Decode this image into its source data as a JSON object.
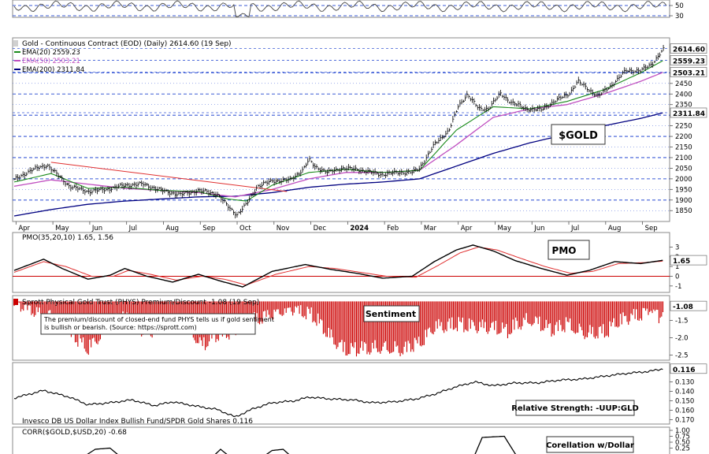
{
  "colors": {
    "price": "#000000",
    "ema20": "#1a8a1a",
    "ema50": "#c050c0",
    "ema200": "#000080",
    "pmo": "#000000",
    "pmo_signal": "#e03030",
    "sentiment": "#cc0000",
    "grid": "#3b5bd6",
    "trendline": "#e03030",
    "zero_line": "#cc0000"
  },
  "chart_data": [
    {
      "type": "line",
      "panel": "rsi-strip",
      "ticks": [
        "50",
        "30"
      ]
    },
    {
      "type": "line",
      "panel": "price",
      "title": "Gold - Continuous Contract (EOD) (Daily) 2614.60 (19 Sep)",
      "annotation": "$GOLD",
      "series": [
        {
          "name": "EMA(20) 2559.23",
          "role": "ema20"
        },
        {
          "name": "EMA(50) 2503.21",
          "role": "ema50"
        },
        {
          "name": "EMA(200) 2311.84",
          "role": "ema200"
        }
      ],
      "ylim": [
        1810,
        2650
      ],
      "yticks": [
        "2500",
        "2450",
        "2400",
        "2350",
        "2300",
        "2250",
        "2200",
        "2150",
        "2100",
        "2050",
        "2000",
        "1950",
        "1900",
        "1850"
      ],
      "value_tags": [
        {
          "value": 2614.6,
          "label": "2614.60",
          "role": "price"
        },
        {
          "value": 2559.23,
          "label": "2559.23",
          "role": "ema20"
        },
        {
          "value": 2503.21,
          "label": "2503.21",
          "role": "ema50"
        },
        {
          "value": 2311.84,
          "label": "2311.84",
          "role": "ema200"
        }
      ],
      "x_months": [
        "Apr",
        "May",
        "Jun",
        "Jul",
        "Aug",
        "Sep",
        "Oct",
        "Nov",
        "Dec",
        "2024",
        "Feb",
        "Mar",
        "Apr",
        "May",
        "Jun",
        "Jul",
        "Aug",
        "Sep"
      ],
      "price_anchors": [
        {
          "x": 0.0,
          "y": 1995
        },
        {
          "x": 0.45,
          "y": 2040
        },
        {
          "x": 0.9,
          "y": 2065
        },
        {
          "x": 1.05,
          "y": 2040
        },
        {
          "x": 1.5,
          "y": 1965
        },
        {
          "x": 2.0,
          "y": 1940
        },
        {
          "x": 2.5,
          "y": 1950
        },
        {
          "x": 3.0,
          "y": 1970
        },
        {
          "x": 3.5,
          "y": 1975
        },
        {
          "x": 4.0,
          "y": 1945
        },
        {
          "x": 4.5,
          "y": 1925
        },
        {
          "x": 5.0,
          "y": 1945
        },
        {
          "x": 5.5,
          "y": 1930
        },
        {
          "x": 5.8,
          "y": 1870
        },
        {
          "x": 6.05,
          "y": 1830
        },
        {
          "x": 6.3,
          "y": 1880
        },
        {
          "x": 6.6,
          "y": 1965
        },
        {
          "x": 7.0,
          "y": 1990
        },
        {
          "x": 7.5,
          "y": 1995
        },
        {
          "x": 7.85,
          "y": 2045
        },
        {
          "x": 8.0,
          "y": 2090
        },
        {
          "x": 8.15,
          "y": 2060
        },
        {
          "x": 8.5,
          "y": 2030
        },
        {
          "x": 8.9,
          "y": 2050
        },
        {
          "x": 9.3,
          "y": 2045
        },
        {
          "x": 9.7,
          "y": 2030
        },
        {
          "x": 10.0,
          "y": 2020
        },
        {
          "x": 10.4,
          "y": 2030
        },
        {
          "x": 10.8,
          "y": 2030
        },
        {
          "x": 11.0,
          "y": 2050
        },
        {
          "x": 11.4,
          "y": 2160
        },
        {
          "x": 11.8,
          "y": 2230
        },
        {
          "x": 12.05,
          "y": 2340
        },
        {
          "x": 12.3,
          "y": 2400
        },
        {
          "x": 12.6,
          "y": 2330
        },
        {
          "x": 12.85,
          "y": 2330
        },
        {
          "x": 13.2,
          "y": 2400
        },
        {
          "x": 13.5,
          "y": 2360
        },
        {
          "x": 13.9,
          "y": 2330
        },
        {
          "x": 14.3,
          "y": 2325
        },
        {
          "x": 14.7,
          "y": 2370
        },
        {
          "x": 15.05,
          "y": 2400
        },
        {
          "x": 15.3,
          "y": 2460
        },
        {
          "x": 15.6,
          "y": 2420
        },
        {
          "x": 15.85,
          "y": 2390
        },
        {
          "x": 16.2,
          "y": 2440
        },
        {
          "x": 16.6,
          "y": 2510
        },
        {
          "x": 17.0,
          "y": 2510
        },
        {
          "x": 17.3,
          "y": 2540
        },
        {
          "x": 17.5,
          "y": 2585
        },
        {
          "x": 17.62,
          "y": 2610
        }
      ],
      "ema20_anchors": [
        {
          "x": 0.0,
          "y": 1985
        },
        {
          "x": 1.0,
          "y": 2025
        },
        {
          "x": 2.0,
          "y": 1955
        },
        {
          "x": 3.0,
          "y": 1960
        },
        {
          "x": 4.0,
          "y": 1945
        },
        {
          "x": 5.0,
          "y": 1940
        },
        {
          "x": 5.8,
          "y": 1905
        },
        {
          "x": 6.3,
          "y": 1895
        },
        {
          "x": 7.0,
          "y": 1970
        },
        {
          "x": 8.0,
          "y": 2030
        },
        {
          "x": 9.0,
          "y": 2045
        },
        {
          "x": 10.0,
          "y": 2030
        },
        {
          "x": 11.0,
          "y": 2040
        },
        {
          "x": 12.0,
          "y": 2230
        },
        {
          "x": 13.0,
          "y": 2340
        },
        {
          "x": 14.0,
          "y": 2330
        },
        {
          "x": 15.0,
          "y": 2365
        },
        {
          "x": 16.0,
          "y": 2420
        },
        {
          "x": 17.0,
          "y": 2500
        },
        {
          "x": 17.62,
          "y": 2559
        }
      ],
      "ema50_anchors": [
        {
          "x": 0.0,
          "y": 1965
        },
        {
          "x": 1.0,
          "y": 1995
        },
        {
          "x": 2.0,
          "y": 1975
        },
        {
          "x": 3.0,
          "y": 1955
        },
        {
          "x": 4.0,
          "y": 1945
        },
        {
          "x": 5.0,
          "y": 1935
        },
        {
          "x": 6.0,
          "y": 1915
        },
        {
          "x": 7.0,
          "y": 1950
        },
        {
          "x": 8.0,
          "y": 2000
        },
        {
          "x": 9.0,
          "y": 2030
        },
        {
          "x": 10.0,
          "y": 2030
        },
        {
          "x": 11.0,
          "y": 2040
        },
        {
          "x": 12.0,
          "y": 2160
        },
        {
          "x": 13.0,
          "y": 2290
        },
        {
          "x": 14.0,
          "y": 2330
        },
        {
          "x": 15.0,
          "y": 2350
        },
        {
          "x": 16.0,
          "y": 2400
        },
        {
          "x": 17.0,
          "y": 2460
        },
        {
          "x": 17.62,
          "y": 2503
        }
      ],
      "ema200_anchors": [
        {
          "x": 0.0,
          "y": 1825
        },
        {
          "x": 1.0,
          "y": 1855
        },
        {
          "x": 2.0,
          "y": 1880
        },
        {
          "x": 3.0,
          "y": 1895
        },
        {
          "x": 4.0,
          "y": 1905
        },
        {
          "x": 5.0,
          "y": 1915
        },
        {
          "x": 6.0,
          "y": 1918
        },
        {
          "x": 7.0,
          "y": 1935
        },
        {
          "x": 8.0,
          "y": 1960
        },
        {
          "x": 9.0,
          "y": 1975
        },
        {
          "x": 10.0,
          "y": 1985
        },
        {
          "x": 11.0,
          "y": 2000
        },
        {
          "x": 12.0,
          "y": 2060
        },
        {
          "x": 13.0,
          "y": 2120
        },
        {
          "x": 14.0,
          "y": 2170
        },
        {
          "x": 15.0,
          "y": 2210
        },
        {
          "x": 16.0,
          "y": 2250
        },
        {
          "x": 17.0,
          "y": 2285
        },
        {
          "x": 17.62,
          "y": 2312
        }
      ],
      "trendline": [
        {
          "x": 1.0,
          "y": 2078
        },
        {
          "x": 7.4,
          "y": 1940
        }
      ]
    },
    {
      "type": "line",
      "panel": "pmo",
      "title": "PMO(35,20,10) 1.65, 1.56",
      "annotation": "PMO",
      "series": [
        {
          "name": "PMO",
          "role": "pmo"
        },
        {
          "name": "Signal",
          "role": "pmo_signal"
        }
      ],
      "ylim": [
        -1.5,
        3.6
      ],
      "yticks": [
        "3",
        "2",
        "1",
        "0",
        "-1"
      ],
      "value_tag": {
        "value": 1.65,
        "label": "1.65"
      },
      "pmo_anchors": [
        {
          "x": 0.0,
          "y": 0.6
        },
        {
          "x": 0.8,
          "y": 1.75
        },
        {
          "x": 1.3,
          "y": 0.8
        },
        {
          "x": 2.0,
          "y": -0.3
        },
        {
          "x": 2.6,
          "y": 0.1
        },
        {
          "x": 3.0,
          "y": 0.8
        },
        {
          "x": 3.6,
          "y": 0.0
        },
        {
          "x": 4.3,
          "y": -0.6
        },
        {
          "x": 5.0,
          "y": 0.2
        },
        {
          "x": 5.6,
          "y": -0.5
        },
        {
          "x": 6.2,
          "y": -1.1
        },
        {
          "x": 7.0,
          "y": 0.5
        },
        {
          "x": 7.9,
          "y": 1.2
        },
        {
          "x": 8.6,
          "y": 0.7
        },
        {
          "x": 9.3,
          "y": 0.3
        },
        {
          "x": 10.0,
          "y": -0.2
        },
        {
          "x": 10.8,
          "y": 0.0
        },
        {
          "x": 11.4,
          "y": 1.5
        },
        {
          "x": 12.0,
          "y": 2.7
        },
        {
          "x": 12.45,
          "y": 3.2
        },
        {
          "x": 13.0,
          "y": 2.6
        },
        {
          "x": 13.6,
          "y": 1.6
        },
        {
          "x": 14.3,
          "y": 0.8
        },
        {
          "x": 15.0,
          "y": 0.1
        },
        {
          "x": 15.6,
          "y": 0.6
        },
        {
          "x": 16.3,
          "y": 1.5
        },
        {
          "x": 17.0,
          "y": 1.3
        },
        {
          "x": 17.62,
          "y": 1.65
        }
      ],
      "signal_anchors": [
        {
          "x": 0.0,
          "y": 0.4
        },
        {
          "x": 0.8,
          "y": 1.5
        },
        {
          "x": 1.4,
          "y": 1.0
        },
        {
          "x": 2.1,
          "y": 0.0
        },
        {
          "x": 2.7,
          "y": 0.0
        },
        {
          "x": 3.1,
          "y": 0.6
        },
        {
          "x": 3.7,
          "y": 0.2
        },
        {
          "x": 4.4,
          "y": -0.4
        },
        {
          "x": 5.1,
          "y": 0.0
        },
        {
          "x": 5.7,
          "y": -0.3
        },
        {
          "x": 6.3,
          "y": -0.9
        },
        {
          "x": 7.1,
          "y": 0.2
        },
        {
          "x": 8.0,
          "y": 1.0
        },
        {
          "x": 8.7,
          "y": 0.8
        },
        {
          "x": 9.4,
          "y": 0.4
        },
        {
          "x": 10.1,
          "y": 0.0
        },
        {
          "x": 10.9,
          "y": -0.1
        },
        {
          "x": 11.5,
          "y": 1.1
        },
        {
          "x": 12.1,
          "y": 2.4
        },
        {
          "x": 12.6,
          "y": 3.0
        },
        {
          "x": 13.1,
          "y": 2.7
        },
        {
          "x": 13.7,
          "y": 1.9
        },
        {
          "x": 14.4,
          "y": 1.0
        },
        {
          "x": 15.1,
          "y": 0.3
        },
        {
          "x": 15.7,
          "y": 0.5
        },
        {
          "x": 16.4,
          "y": 1.3
        },
        {
          "x": 17.1,
          "y": 1.4
        },
        {
          "x": 17.62,
          "y": 1.56
        }
      ]
    },
    {
      "type": "bar",
      "panel": "sentiment",
      "title": "Sprott Physical Gold Trust (PHYS) Premium/Discount -1.08 (19 Sep)",
      "annotation": "Sentiment",
      "note": "The premium/discount of closed-end fund PHYS tells us if gold sentiment is bullish or bearish. (Source: https://sprott.com)",
      "ylim": [
        -2.6,
        -0.85
      ],
      "yticks": [
        "-1.5",
        "-2.0",
        "-2.5"
      ],
      "value_tag": {
        "value": -1.08,
        "label": "-1.08"
      },
      "envelope": [
        {
          "x": 0.0,
          "y": -1.2
        },
        {
          "x": 1.0,
          "y": -1.4
        },
        {
          "x": 1.5,
          "y": -1.8
        },
        {
          "x": 2.0,
          "y": -2.4
        },
        {
          "x": 2.5,
          "y": -1.9
        },
        {
          "x": 3.0,
          "y": -1.6
        },
        {
          "x": 3.6,
          "y": -1.9
        },
        {
          "x": 4.0,
          "y": -1.7
        },
        {
          "x": 4.6,
          "y": -1.5
        },
        {
          "x": 5.1,
          "y": -2.4
        },
        {
          "x": 5.6,
          "y": -2.1
        },
        {
          "x": 6.0,
          "y": -1.9
        },
        {
          "x": 6.5,
          "y": -1.5
        },
        {
          "x": 7.0,
          "y": -1.3
        },
        {
          "x": 7.5,
          "y": -1.2
        },
        {
          "x": 8.0,
          "y": -1.5
        },
        {
          "x": 8.6,
          "y": -2.1
        },
        {
          "x": 9.0,
          "y": -2.4
        },
        {
          "x": 9.5,
          "y": -2.3
        },
        {
          "x": 10.0,
          "y": -2.3
        },
        {
          "x": 10.6,
          "y": -2.5
        },
        {
          "x": 11.0,
          "y": -2.4
        },
        {
          "x": 11.4,
          "y": -1.8
        },
        {
          "x": 12.0,
          "y": -1.6
        },
        {
          "x": 12.6,
          "y": -1.7
        },
        {
          "x": 13.0,
          "y": -1.8
        },
        {
          "x": 13.4,
          "y": -2.0
        },
        {
          "x": 14.0,
          "y": -1.6
        },
        {
          "x": 14.6,
          "y": -1.8
        },
        {
          "x": 15.0,
          "y": -1.6
        },
        {
          "x": 15.5,
          "y": -1.9
        },
        {
          "x": 16.1,
          "y": -2.0
        },
        {
          "x": 16.6,
          "y": -1.6
        },
        {
          "x": 17.0,
          "y": -1.4
        },
        {
          "x": 17.3,
          "y": -1.1
        },
        {
          "x": 17.5,
          "y": -1.4
        },
        {
          "x": 17.62,
          "y": -1.08
        }
      ]
    },
    {
      "type": "line",
      "panel": "relative-strength",
      "title": "Invesco DB US Dollar Index Bullish Fund/SPDR Gold Shares 0.116",
      "annotation": "Relative Strength: -UUP:GLD",
      "series": [
        {
          "name": "-UUP:GLD",
          "role": "pmo"
        }
      ],
      "ylim": [
        0.112,
        0.172
      ],
      "yticks": [
        "0.130",
        "0.140",
        "0.150",
        "0.160",
        "0.170"
      ],
      "value_tag": {
        "value": 0.116,
        "label": "0.116"
      },
      "reversed": true,
      "anchors": [
        {
          "x": 0.0,
          "y": 0.147
        },
        {
          "x": 0.8,
          "y": 0.139
        },
        {
          "x": 1.5,
          "y": 0.146
        },
        {
          "x": 2.0,
          "y": 0.154
        },
        {
          "x": 2.6,
          "y": 0.152
        },
        {
          "x": 3.2,
          "y": 0.149
        },
        {
          "x": 3.8,
          "y": 0.155
        },
        {
          "x": 4.3,
          "y": 0.151
        },
        {
          "x": 5.0,
          "y": 0.156
        },
        {
          "x": 5.5,
          "y": 0.159
        },
        {
          "x": 6.0,
          "y": 0.167
        },
        {
          "x": 6.5,
          "y": 0.158
        },
        {
          "x": 7.0,
          "y": 0.152
        },
        {
          "x": 7.6,
          "y": 0.15
        },
        {
          "x": 8.0,
          "y": 0.146
        },
        {
          "x": 8.6,
          "y": 0.148
        },
        {
          "x": 9.2,
          "y": 0.149
        },
        {
          "x": 9.7,
          "y": 0.152
        },
        {
          "x": 10.3,
          "y": 0.151
        },
        {
          "x": 10.9,
          "y": 0.148
        },
        {
          "x": 11.4,
          "y": 0.143
        },
        {
          "x": 12.0,
          "y": 0.135
        },
        {
          "x": 12.5,
          "y": 0.13
        },
        {
          "x": 13.0,
          "y": 0.134
        },
        {
          "x": 13.6,
          "y": 0.131
        },
        {
          "x": 14.2,
          "y": 0.131
        },
        {
          "x": 14.8,
          "y": 0.128
        },
        {
          "x": 15.4,
          "y": 0.127
        },
        {
          "x": 16.0,
          "y": 0.124
        },
        {
          "x": 16.6,
          "y": 0.121
        },
        {
          "x": 17.2,
          "y": 0.119
        },
        {
          "x": 17.62,
          "y": 0.116
        }
      ]
    },
    {
      "type": "line",
      "panel": "correlation",
      "title": "CORR($GOLD,$USD,20) -0.68",
      "annotation": "Corellation w/Dollar",
      "ylim": [
        0.0,
        1.0
      ],
      "yticks": [
        "1.00",
        "0.75",
        "0.50",
        "0.25"
      ],
      "anchors": [
        {
          "x": 0.0,
          "y": -0.6
        },
        {
          "x": 1.5,
          "y": -0.5
        },
        {
          "x": 2.2,
          "y": 0.2
        },
        {
          "x": 2.6,
          "y": 0.25
        },
        {
          "x": 3.1,
          "y": -0.4
        },
        {
          "x": 4.0,
          "y": -0.5
        },
        {
          "x": 5.2,
          "y": -0.4
        },
        {
          "x": 5.6,
          "y": 0.2
        },
        {
          "x": 6.0,
          "y": -0.3
        },
        {
          "x": 6.4,
          "y": -0.5
        },
        {
          "x": 7.0,
          "y": 0.15
        },
        {
          "x": 7.3,
          "y": 0.2
        },
        {
          "x": 7.8,
          "y": -0.5
        },
        {
          "x": 9.0,
          "y": -0.5
        },
        {
          "x": 12.4,
          "y": -0.4
        },
        {
          "x": 12.7,
          "y": 0.7
        },
        {
          "x": 13.3,
          "y": 0.75
        },
        {
          "x": 13.6,
          "y": 0.0
        },
        {
          "x": 14.0,
          "y": -0.5
        },
        {
          "x": 16.8,
          "y": -0.5
        },
        {
          "x": 17.62,
          "y": -0.68
        }
      ]
    }
  ]
}
